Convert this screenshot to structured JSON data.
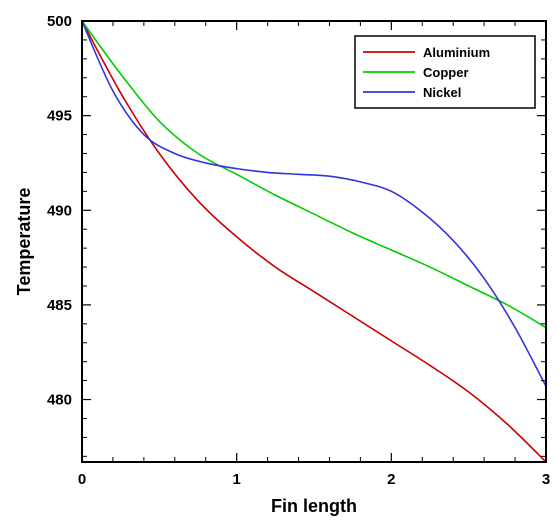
{
  "chart_data": {
    "type": "line",
    "title": "",
    "xlabel": "Fin length",
    "ylabel": "Temperature",
    "xlim": [
      0,
      3
    ],
    "ylim": [
      476.7,
      500
    ],
    "x_ticks": [
      0,
      1,
      2,
      3
    ],
    "x_tick_labels": [
      "0",
      "1",
      "2",
      "3"
    ],
    "y_ticks": [
      480,
      485,
      490,
      495,
      500
    ],
    "y_tick_labels": [
      "480",
      "485",
      "490",
      "495",
      "500"
    ],
    "grid": false,
    "legend_position": "top-right",
    "series": [
      {
        "name": "Aluminium",
        "color": "#cc0000",
        "x": [
          0,
          0.25,
          0.5,
          0.75,
          1.0,
          1.25,
          1.5,
          1.75,
          2.0,
          2.25,
          2.5,
          2.75,
          3.0
        ],
        "y": [
          500,
          496.2,
          493.0,
          490.5,
          488.6,
          487.0,
          485.7,
          484.4,
          483.1,
          481.8,
          480.4,
          478.7,
          476.7
        ]
      },
      {
        "name": "Copper",
        "color": "#00cc00",
        "x": [
          0,
          0.25,
          0.5,
          0.75,
          1.0,
          1.25,
          1.5,
          1.75,
          2.0,
          2.25,
          2.5,
          2.75,
          3.0
        ],
        "y": [
          500,
          497.2,
          494.7,
          493.0,
          491.9,
          490.8,
          489.8,
          488.8,
          487.9,
          487.0,
          486.0,
          485.0,
          483.8
        ]
      },
      {
        "name": "Nickel",
        "color": "#3333dd",
        "x": [
          0,
          0.2,
          0.4,
          0.6,
          0.8,
          1.0,
          1.2,
          1.4,
          1.6,
          1.8,
          2.0,
          2.2,
          2.4,
          2.6,
          2.8,
          3.0
        ],
        "y": [
          500,
          496.3,
          494.0,
          493.0,
          492.5,
          492.2,
          492.0,
          491.9,
          491.8,
          491.5,
          491.0,
          489.9,
          488.4,
          486.4,
          483.8,
          480.7
        ]
      }
    ]
  }
}
